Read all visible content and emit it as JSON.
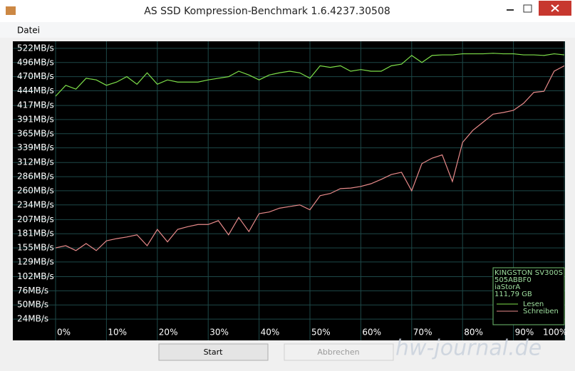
{
  "window": {
    "title": "AS SSD Kompression-Benchmark 1.6.4237.30508"
  },
  "menu": [
    "Datei"
  ],
  "chart_data": {
    "type": "line",
    "x": [
      0,
      2,
      4,
      6,
      8,
      10,
      12,
      14,
      16,
      18,
      20,
      22,
      24,
      26,
      28,
      30,
      32,
      34,
      36,
      38,
      40,
      42,
      44,
      46,
      48,
      50,
      52,
      54,
      56,
      58,
      60,
      62,
      64,
      66,
      68,
      70,
      72,
      74,
      76,
      78,
      80,
      82,
      84,
      86,
      88,
      90,
      92,
      94,
      96,
      98,
      100
    ],
    "series": [
      {
        "name": "Lesen",
        "color": "#7ee04a",
        "values": [
          434,
          454,
          447,
          467,
          464,
          454,
          460,
          470,
          456,
          477,
          456,
          464,
          460,
          460,
          460,
          464,
          467,
          470,
          480,
          473,
          464,
          473,
          477,
          480,
          477,
          467,
          490,
          487,
          490,
          480,
          483,
          480,
          480,
          490,
          493,
          509,
          496,
          509,
          510,
          510,
          512,
          512,
          512,
          513,
          512,
          512,
          510,
          510,
          509,
          512,
          510
        ]
      },
      {
        "name": "Schreiben",
        "color": "#e88a8a",
        "values": [
          155,
          159,
          150,
          163,
          150,
          168,
          172,
          175,
          179,
          159,
          189,
          166,
          189,
          194,
          198,
          198,
          205,
          179,
          211,
          185,
          218,
          221,
          228,
          231,
          234,
          225,
          251,
          255,
          264,
          265,
          268,
          273,
          281,
          290,
          294,
          260,
          310,
          320,
          326,
          277,
          349,
          371,
          386,
          401,
          404,
          408,
          421,
          441,
          443,
          480,
          490
        ]
      }
    ],
    "xlim": [
      0,
      100
    ],
    "xticks": [
      {
        "value": 0,
        "label": "0%"
      },
      {
        "value": 10,
        "label": "10%"
      },
      {
        "value": 20,
        "label": "20%"
      },
      {
        "value": 30,
        "label": "30%"
      },
      {
        "value": 40,
        "label": "40%"
      },
      {
        "value": 50,
        "label": "50%"
      },
      {
        "value": 60,
        "label": "60%"
      },
      {
        "value": 70,
        "label": "70%"
      },
      {
        "value": 80,
        "label": "80%"
      },
      {
        "value": 90,
        "label": "90%"
      },
      {
        "value": 100,
        "label": "100%"
      }
    ],
    "ylim": [
      11,
      535
    ],
    "yticks": [
      {
        "value": 522,
        "label": "522MB/s"
      },
      {
        "value": 496,
        "label": "496MB/s"
      },
      {
        "value": 470,
        "label": "470MB/s"
      },
      {
        "value": 444,
        "label": "444MB/s"
      },
      {
        "value": 417,
        "label": "417MB/s"
      },
      {
        "value": 391,
        "label": "391MB/s"
      },
      {
        "value": 365,
        "label": "365MB/s"
      },
      {
        "value": 339,
        "label": "339MB/s"
      },
      {
        "value": 312,
        "label": "312MB/s"
      },
      {
        "value": 286,
        "label": "286MB/s"
      },
      {
        "value": 260,
        "label": "260MB/s"
      },
      {
        "value": 234,
        "label": "234MB/s"
      },
      {
        "value": 207,
        "label": "207MB/s"
      },
      {
        "value": 181,
        "label": "181MB/s"
      },
      {
        "value": 155,
        "label": "155MB/s"
      },
      {
        "value": 129,
        "label": "129MB/s"
      },
      {
        "value": 102,
        "label": "102MB/s"
      },
      {
        "value": 76,
        "label": "76MB/s"
      },
      {
        "value": 50,
        "label": "50MB/s"
      },
      {
        "value": 24,
        "label": "24MB/s"
      }
    ],
    "grid": true,
    "info": [
      "KINGSTON SV300S",
      "505ABBF0",
      "iaStorA",
      "111,79 GB"
    ]
  },
  "buttons": [
    "Start",
    "Abbrechen"
  ],
  "watermark": "hw-journal.de"
}
